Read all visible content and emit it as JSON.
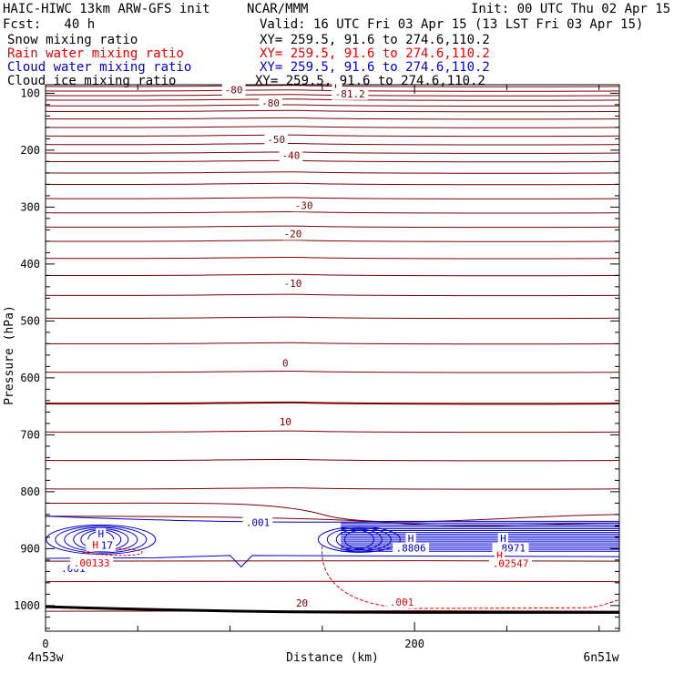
{
  "header": {
    "title": "HAIC-HIWC 13km ARW-GFS init",
    "org": "NCAR/MMM",
    "init": "Init: 00 UTC Thu 02 Apr 15",
    "fcst": "Fcst:   40 h",
    "valid": "Valid: 16 UTC Fri 03 Apr 15 (13 LST Fri 03 Apr 15)",
    "fields": [
      {
        "name": "Snow mixing ratio",
        "xy": "XY= 259.5, 91.6 to 274.6,110.2",
        "color": "#000000"
      },
      {
        "name": "Rain water mixing ratio",
        "xy": "XY= 259.5, 91.6 to 274.6,110.2",
        "color": "#ee0000"
      },
      {
        "name": "Cloud water mixing ratio",
        "xy": "XY= 259.5, 91.6 to 274.6,110.2",
        "color": "#0000cc"
      },
      {
        "name": "Cloud ice mixing ratio",
        "xy": "XY= 259.5, 91.6 to 274.6,110.2",
        "color": "#000000"
      }
    ]
  },
  "chart_data": {
    "type": "contour cross-section",
    "xlabel": "Distance (km)",
    "ylabel": "Pressure (hPa)",
    "xlim": [
      0,
      311
    ],
    "ylim": [
      1045,
      85
    ],
    "x_ticks": [
      0,
      200
    ],
    "y_ticks": [
      100,
      200,
      300,
      400,
      500,
      600,
      700,
      800,
      900,
      1000
    ],
    "x_start_label": "4n53w",
    "x_end_label": "6n51w",
    "colors": {
      "temperature": "#7a0000",
      "cloud_water": "#0000cc",
      "rain": "#ee0000",
      "ground": "#000000"
    },
    "temperature_contour_labels": [
      {
        "text": "-80",
        "x": 102,
        "p": 100
      },
      {
        "text": "-80",
        "x": 122,
        "p": 123
      },
      {
        "text": "L",
        "x": 158,
        "p": 97
      },
      {
        "text": "-81.2",
        "x": 165,
        "p": 107
      },
      {
        "text": "-50",
        "x": 125,
        "p": 187
      },
      {
        "text": "-40",
        "x": 133,
        "p": 215
      },
      {
        "text": "-30",
        "x": 140,
        "p": 303
      },
      {
        "text": "-20",
        "x": 134,
        "p": 353
      },
      {
        "text": "-10",
        "x": 134,
        "p": 440
      },
      {
        "text": "0",
        "x": 130,
        "p": 580
      },
      {
        "text": "10",
        "x": 130,
        "p": 683
      },
      {
        "text": "20",
        "x": 139,
        "p": 1002
      }
    ],
    "cloud_water_labels": [
      {
        "text": "H",
        "x": 30,
        "p": 880
      },
      {
        "text": ".917",
        "x": 30,
        "p": 900
      },
      {
        "text": ".001",
        "x": 115,
        "p": 860
      },
      {
        "text": ".001",
        "x": 15,
        "p": 941
      },
      {
        "text": "H",
        "x": 198,
        "p": 888
      },
      {
        "text": ".8806",
        "x": 198,
        "p": 905
      },
      {
        "text": "H",
        "x": 248,
        "p": 888
      },
      {
        "text": ".8971",
        "x": 252,
        "p": 905
      }
    ],
    "rain_labels": [
      {
        "text": "H",
        "x": 27,
        "p": 899
      },
      {
        "text": ".00133",
        "x": 25,
        "p": 931
      },
      {
        "text": "H",
        "x": 246,
        "p": 918
      },
      {
        "text": ".02547",
        "x": 252,
        "p": 932
      },
      {
        "text": ".001",
        "x": 193,
        "p": 1000
      }
    ],
    "temperature_isotherm_levels_hpa": [
      88,
      96,
      104,
      112,
      122,
      132,
      145,
      160,
      175,
      190,
      205,
      220,
      240,
      260,
      285,
      310,
      335,
      360,
      390,
      420,
      455,
      495,
      540,
      590,
      645,
      695,
      745,
      795
    ],
    "cloud_water_maxima": [
      {
        "label": "H",
        "value": 0.917
      },
      {
        "label": "H",
        "value": 0.8806
      },
      {
        "label": "H",
        "value": 0.8971
      }
    ],
    "rain_maxima": [
      {
        "label": "H",
        "value": 0.00133
      },
      {
        "label": "H",
        "value": 0.02547
      }
    ]
  }
}
